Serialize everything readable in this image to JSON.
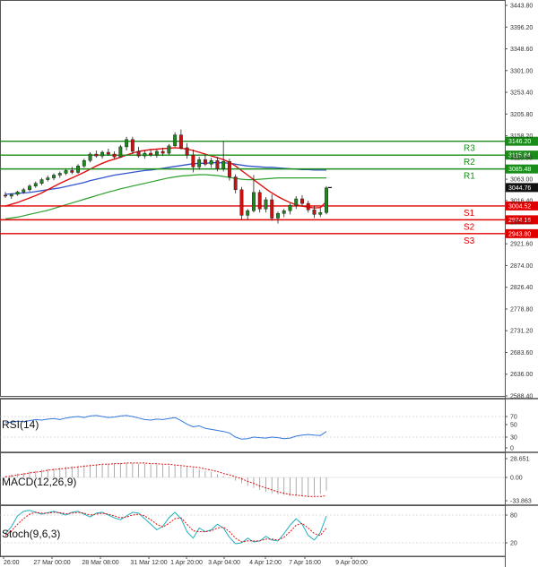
{
  "chart_data": {
    "type": "candlestick",
    "x_ticks": [
      "26:00",
      "27 Mar 00:00",
      "28 Mar 08:00",
      "31 Mar 12:00",
      "1 Apr 20:00",
      "3 Apr 04:00",
      "4 Apr 12:00",
      "7 Apr 16:00",
      "9 Apr 00:00"
    ],
    "y_ticks": [
      "3443.80",
      "3396.20",
      "3348.60",
      "3301.00",
      "3253.40",
      "3205.80",
      "3158.20",
      "3110.60",
      "3063.00",
      "3016.40",
      "2968.80",
      "2921.60",
      "2874.00",
      "2826.40",
      "2778.80",
      "2731.20",
      "2683.60",
      "2636.00",
      "2588.40"
    ],
    "ylim": [
      2588.4,
      3443.8
    ],
    "current_price": "3044.76",
    "levels": [
      {
        "name": "R3",
        "value": 3146.2,
        "label": "3146.20",
        "color": "#1a8c1a"
      },
      {
        "name": "R2",
        "value": 3115.84,
        "label": "3115.84",
        "color": "#1a8c1a"
      },
      {
        "name": "R1",
        "value": 3085.48,
        "label": "3085.48",
        "color": "#1a8c1a"
      },
      {
        "name": "S1",
        "value": 3004.52,
        "label": "3004.52",
        "color": "#e00000"
      },
      {
        "name": "S2",
        "value": 2974.16,
        "label": "2974.16",
        "color": "#e00000"
      },
      {
        "name": "S3",
        "value": 2943.8,
        "label": "2943.80",
        "color": "#e00000"
      }
    ],
    "candles": [
      [
        3028,
        3035,
        3022,
        3026
      ],
      [
        3026,
        3032,
        3020,
        3030
      ],
      [
        3030,
        3038,
        3027,
        3035
      ],
      [
        3035,
        3044,
        3031,
        3040
      ],
      [
        3040,
        3052,
        3036,
        3048
      ],
      [
        3048,
        3058,
        3044,
        3054
      ],
      [
        3054,
        3066,
        3050,
        3062
      ],
      [
        3062,
        3071,
        3058,
        3066
      ],
      [
        3066,
        3076,
        3061,
        3072
      ],
      [
        3072,
        3080,
        3066,
        3076
      ],
      [
        3076,
        3086,
        3072,
        3082
      ],
      [
        3082,
        3090,
        3074,
        3078
      ],
      [
        3078,
        3096,
        3075,
        3092
      ],
      [
        3092,
        3108,
        3088,
        3104
      ],
      [
        3104,
        3122,
        3100,
        3118
      ],
      [
        3118,
        3126,
        3110,
        3114
      ],
      [
        3114,
        3126,
        3108,
        3122
      ],
      [
        3122,
        3130,
        3114,
        3118
      ],
      [
        3118,
        3124,
        3108,
        3112
      ],
      [
        3112,
        3138,
        3110,
        3134
      ],
      [
        3134,
        3156,
        3126,
        3150
      ],
      [
        3150,
        3156,
        3118,
        3124
      ],
      [
        3124,
        3134,
        3110,
        3114
      ],
      [
        3114,
        3126,
        3108,
        3120
      ],
      [
        3120,
        3128,
        3112,
        3116
      ],
      [
        3116,
        3128,
        3110,
        3124
      ],
      [
        3124,
        3132,
        3114,
        3120
      ],
      [
        3120,
        3140,
        3116,
        3136
      ],
      [
        3136,
        3166,
        3134,
        3160
      ],
      [
        3160,
        3172,
        3128,
        3132
      ],
      [
        3132,
        3142,
        3108,
        3116
      ],
      [
        3116,
        3128,
        3078,
        3090
      ],
      [
        3090,
        3112,
        3084,
        3106
      ],
      [
        3106,
        3116,
        3092,
        3096
      ],
      [
        3096,
        3110,
        3088,
        3104
      ],
      [
        3104,
        3112,
        3080,
        3086
      ],
      [
        3086,
        3146,
        3080,
        3102
      ],
      [
        3102,
        3108,
        3060,
        3068
      ],
      [
        3068,
        3074,
        3032,
        3040
      ],
      [
        3040,
        3046,
        2974,
        2984
      ],
      [
        2984,
        2998,
        2974,
        2994
      ],
      [
        2994,
        3072,
        2990,
        3034
      ],
      [
        3034,
        3040,
        2990,
        2998
      ],
      [
        2998,
        3024,
        2990,
        3018
      ],
      [
        3018,
        3030,
        2972,
        2978
      ],
      [
        2978,
        2992,
        2966,
        2988
      ],
      [
        2988,
        2998,
        2980,
        2994
      ],
      [
        2994,
        3010,
        2986,
        3006
      ],
      [
        3006,
        3026,
        2998,
        3020
      ],
      [
        3020,
        3028,
        3004,
        3010
      ],
      [
        3010,
        3016,
        2990,
        2996
      ],
      [
        2996,
        3004,
        2978,
        2986
      ],
      [
        2986,
        3000,
        2980,
        2990
      ],
      [
        2990,
        3048,
        2986,
        3044
      ]
    ],
    "ma_fast": [
      3004,
      3008,
      3012,
      3017,
      3022,
      3027,
      3033,
      3040,
      3047,
      3054,
      3060,
      3066,
      3072,
      3078,
      3085,
      3092,
      3098,
      3103,
      3107,
      3111,
      3116,
      3120,
      3124,
      3126,
      3128,
      3129,
      3130,
      3131,
      3132,
      3131,
      3129,
      3126,
      3122,
      3118,
      3114,
      3110,
      3106,
      3100,
      3092,
      3082,
      3072,
      3062,
      3052,
      3042,
      3033,
      3025,
      3018,
      3012,
      3007,
      3004,
      3002,
      3000,
      3001,
      3014
    ],
    "ma_mid": [
      3030,
      3031,
      3032,
      3033,
      3034,
      3036,
      3038,
      3040,
      3042,
      3044,
      3047,
      3050,
      3053,
      3056,
      3060,
      3063,
      3066,
      3069,
      3072,
      3074,
      3076,
      3078,
      3080,
      3082,
      3083,
      3085,
      3087,
      3089,
      3091,
      3093,
      3095,
      3097,
      3098,
      3098,
      3099,
      3099,
      3099,
      3098,
      3096,
      3094,
      3092,
      3091,
      3090,
      3089,
      3089,
      3088,
      3087,
      3086,
      3085,
      3084,
      3084,
      3083,
      3083,
      3083
    ],
    "ma_slow": [
      2976,
      2978,
      2980,
      2983,
      2986,
      2989,
      2992,
      2995,
      2999,
      3003,
      3007,
      3011,
      3015,
      3019,
      3023,
      3027,
      3031,
      3035,
      3038,
      3042,
      3045,
      3048,
      3051,
      3054,
      3057,
      3060,
      3063,
      3066,
      3068,
      3070,
      3071,
      3072,
      3073,
      3073,
      3072,
      3071,
      3069,
      3067,
      3065,
      3063,
      3062,
      3062,
      3063,
      3064,
      3065,
      3066,
      3066,
      3066,
      3066,
      3066,
      3066,
      3066,
      3066,
      3066
    ],
    "panels": [
      {
        "name": "RSI(14)",
        "ticks": [
          "70",
          "50",
          "30",
          "0"
        ],
        "ylim": [
          0,
          100
        ],
        "values": [
          58,
          59,
          61,
          60,
          62,
          64,
          63,
          65,
          66,
          64,
          67,
          69,
          70,
          68,
          71,
          72,
          70,
          68,
          69,
          71,
          72,
          70,
          67,
          64,
          63,
          65,
          64,
          66,
          68,
          62,
          55,
          50,
          52,
          47,
          45,
          43,
          41,
          38,
          30,
          26,
          27,
          30,
          29,
          28,
          30,
          29,
          27,
          28,
          32,
          34,
          35,
          34,
          33,
          41
        ]
      },
      {
        "name": "MACD(12,26,9)",
        "ticks": [
          "28.651",
          "0.00",
          "-33.863"
        ],
        "ylim": [
          -33.863,
          28.651
        ],
        "histogram": [
          2,
          4,
          6,
          7,
          9,
          10,
          12,
          13,
          14,
          15,
          16,
          17,
          18,
          19,
          20,
          20,
          21,
          21,
          22,
          22,
          22,
          22,
          21,
          21,
          20,
          20,
          19,
          18,
          18,
          17,
          16,
          14,
          12,
          10,
          8,
          5,
          2,
          -1,
          -5,
          -9,
          -13,
          -16,
          -19,
          -22,
          -24,
          -26,
          -27,
          -28,
          -28,
          -28,
          -28,
          -27,
          -25,
          -20
        ],
        "signal": [
          1,
          2,
          4,
          5,
          7,
          8,
          9,
          11,
          12,
          13,
          14,
          15,
          16,
          17,
          18,
          19,
          20,
          20,
          21,
          21,
          22,
          22,
          22,
          22,
          21,
          21,
          20,
          20,
          19,
          18,
          17,
          16,
          15,
          13,
          11,
          9,
          6,
          4,
          1,
          -2,
          -6,
          -9,
          -13,
          -16,
          -19,
          -22,
          -24,
          -26,
          -27,
          -28,
          -29,
          -29,
          -29,
          -28
        ]
      },
      {
        "name": "Stoch(9,6,3)",
        "ticks": [
          "80",
          "20"
        ],
        "ylim": [
          0,
          100
        ],
        "k": [
          40,
          55,
          78,
          88,
          90,
          86,
          82,
          85,
          88,
          84,
          80,
          86,
          88,
          82,
          76,
          84,
          86,
          80,
          74,
          70,
          78,
          86,
          84,
          72,
          60,
          48,
          56,
          74,
          86,
          72,
          44,
          30,
          52,
          44,
          48,
          60,
          52,
          32,
          18,
          20,
          30,
          22,
          24,
          34,
          26,
          24,
          40,
          58,
          72,
          60,
          36,
          26,
          42,
          78
        ],
        "d": [
          36,
          46,
          60,
          72,
          82,
          86,
          84,
          84,
          86,
          85,
          83,
          84,
          86,
          84,
          80,
          82,
          84,
          82,
          78,
          74,
          76,
          80,
          82,
          78,
          70,
          60,
          54,
          62,
          72,
          74,
          60,
          46,
          44,
          44,
          46,
          52,
          54,
          44,
          30,
          22,
          24,
          24,
          24,
          28,
          28,
          26,
          32,
          44,
          58,
          62,
          52,
          40,
          36,
          52
        ]
      }
    ]
  }
}
